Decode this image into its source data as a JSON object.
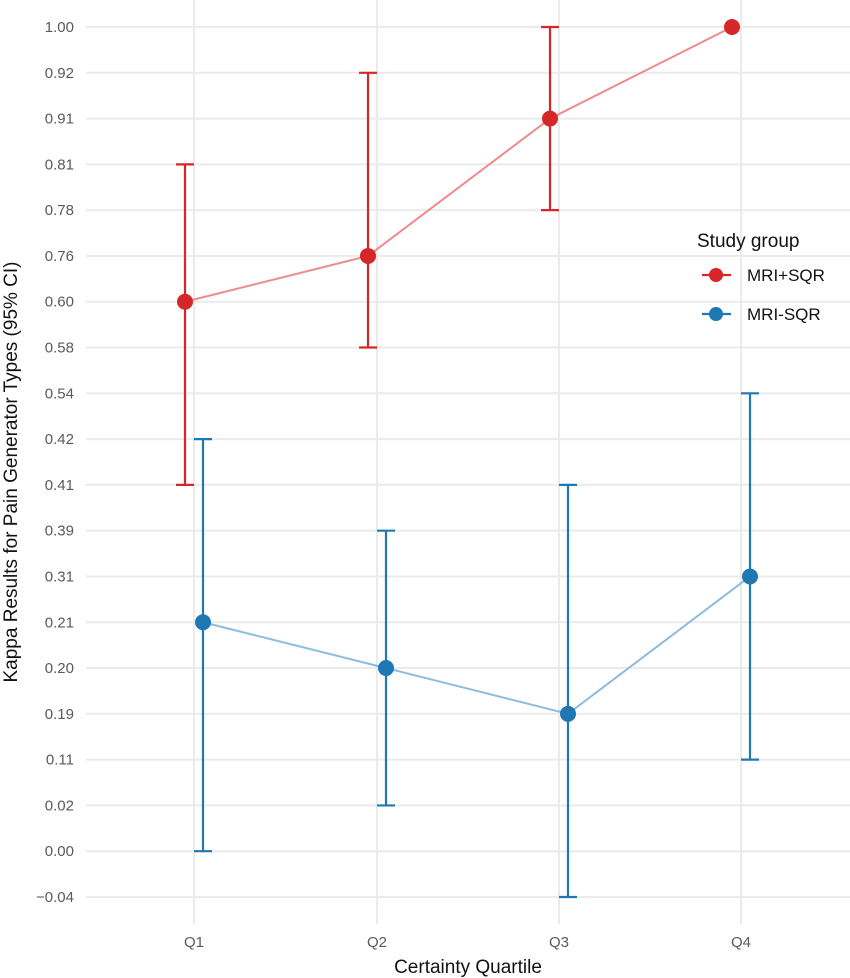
{
  "chart_data": {
    "type": "line",
    "title": "",
    "xlabel": "Certainty Quartile",
    "ylabel": "Kappa Results for Pain Generator Types (95% CI)",
    "y_axis_kind": "discrete",
    "y_levels": [
      "-0.04",
      "0.00",
      "0.02",
      "0.11",
      "0.19",
      "0.20",
      "0.21",
      "0.31",
      "0.39",
      "0.41",
      "0.42",
      "0.54",
      "0.58",
      "0.60",
      "0.76",
      "0.78",
      "0.81",
      "0.91",
      "0.92",
      "1.00"
    ],
    "y_ticks_shown": [
      "1.00",
      "0.92",
      "0.91",
      "0.81",
      "0.78",
      "0.76",
      "0.60",
      "0.58",
      "0.54",
      "0.42",
      "0.41",
      "0.39",
      "0.31",
      "0.21",
      "0.20",
      "0.19",
      "0.11",
      "0.02",
      "0.00",
      "-0.04"
    ],
    "categories": [
      "Q1",
      "Q2",
      "Q3",
      "Q4"
    ],
    "grid": true,
    "legend": {
      "title": "Study group",
      "position": "right"
    },
    "series": [
      {
        "name": "MRI+SQR",
        "color": "#d62728",
        "line_color": "#ee8a8a",
        "values": [
          "0.60",
          "0.76",
          "0.91",
          "1.00"
        ],
        "ci_lower": [
          "0.41",
          "0.58",
          "0.78",
          null
        ],
        "ci_upper": [
          "0.81",
          "0.92",
          "1.00",
          null
        ]
      },
      {
        "name": "MRI-SQR",
        "color": "#1f77b4",
        "line_color": "#8bbcdc",
        "values": [
          "0.21",
          "0.20",
          "0.19",
          "0.31"
        ],
        "ci_lower": [
          "0.00",
          "0.02",
          "-0.04",
          "0.11"
        ],
        "ci_upper": [
          "0.42",
          "0.39",
          "0.41",
          "0.54"
        ]
      }
    ]
  }
}
